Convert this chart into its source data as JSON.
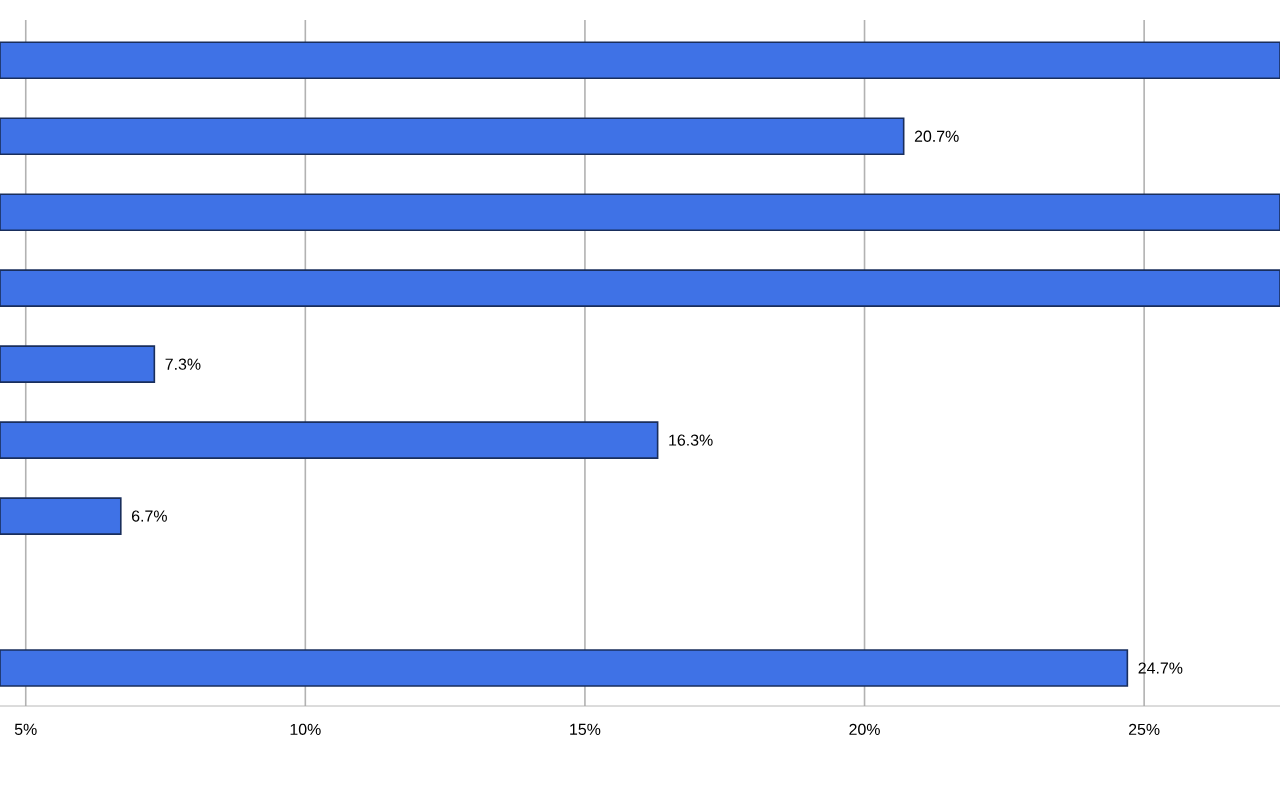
{
  "chart_data": {
    "type": "bar",
    "orientation": "horizontal",
    "categories": [
      null,
      null,
      null,
      null,
      null,
      null,
      null,
      null,
      null
    ],
    "values": [
      27.43,
      20.7,
      27.43,
      27.43,
      7.3,
      16.3,
      6.7,
      null,
      24.7
    ],
    "value_labels": [
      null,
      "20.7%",
      null,
      null,
      "7.3%",
      "16.3%",
      "6.7%",
      null,
      "24.7%"
    ],
    "color": "#3f72e6",
    "xlim": [
      4.54,
      27.43
    ],
    "xticks": [
      {
        "value": 5,
        "label": "5%"
      },
      {
        "value": 10,
        "label": "10%"
      },
      {
        "value": 15,
        "label": "15%"
      },
      {
        "value": 20,
        "label": "20%"
      },
      {
        "value": 25,
        "label": "25%"
      }
    ],
    "grid": "x",
    "tick_labels": "x"
  }
}
